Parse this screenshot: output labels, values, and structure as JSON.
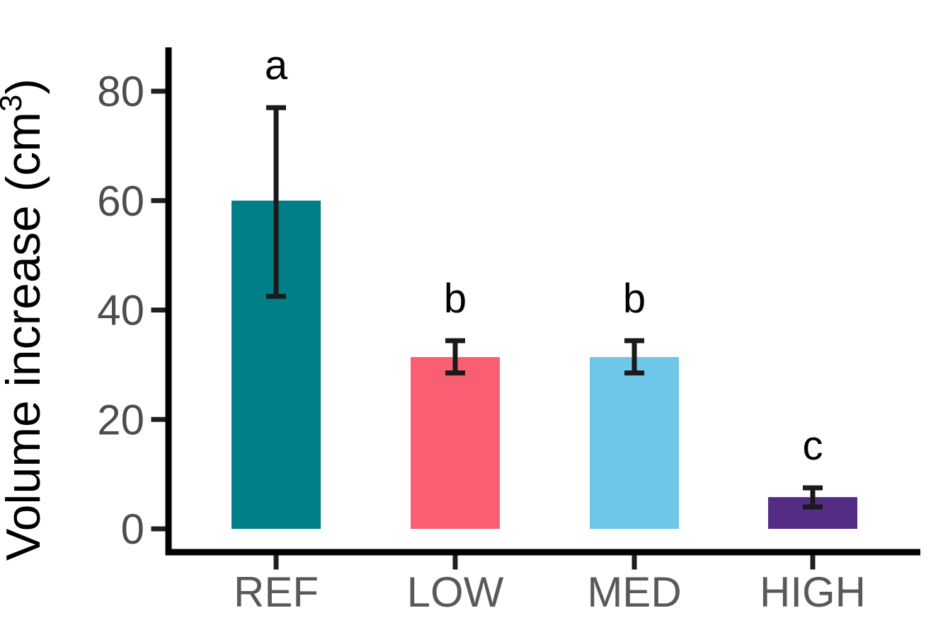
{
  "chart_data": {
    "type": "bar",
    "title": "",
    "xlabel": "",
    "ylabel": "Volume increase (cm³)",
    "ylabel_parts": {
      "base": "Volume increase (cm",
      "sup": "3",
      "end": ")"
    },
    "categories": [
      "REF",
      "LOW",
      "MED",
      "HIGH"
    ],
    "values": [
      60,
      31.4,
      31.4,
      5.8
    ],
    "error_low": [
      42.5,
      28.5,
      28.5,
      4.0
    ],
    "error_high": [
      77,
      34.4,
      34.4,
      7.5
    ],
    "sig_letters": [
      "a",
      "b",
      "b",
      "c"
    ],
    "bar_colors": [
      "#007F88",
      "#FA5E72",
      "#6EC6E9",
      "#542C85"
    ],
    "y_ticks": [
      0,
      20,
      40,
      60,
      80
    ],
    "ylim": [
      0,
      88
    ],
    "grid": false,
    "legend": "none",
    "axis_color": "#000000",
    "tick_label_color": "#4d4d4d",
    "category_label_color": "#595959",
    "sig_letter_color": "#000000",
    "error_bar_color": "#1a1a1a"
  }
}
